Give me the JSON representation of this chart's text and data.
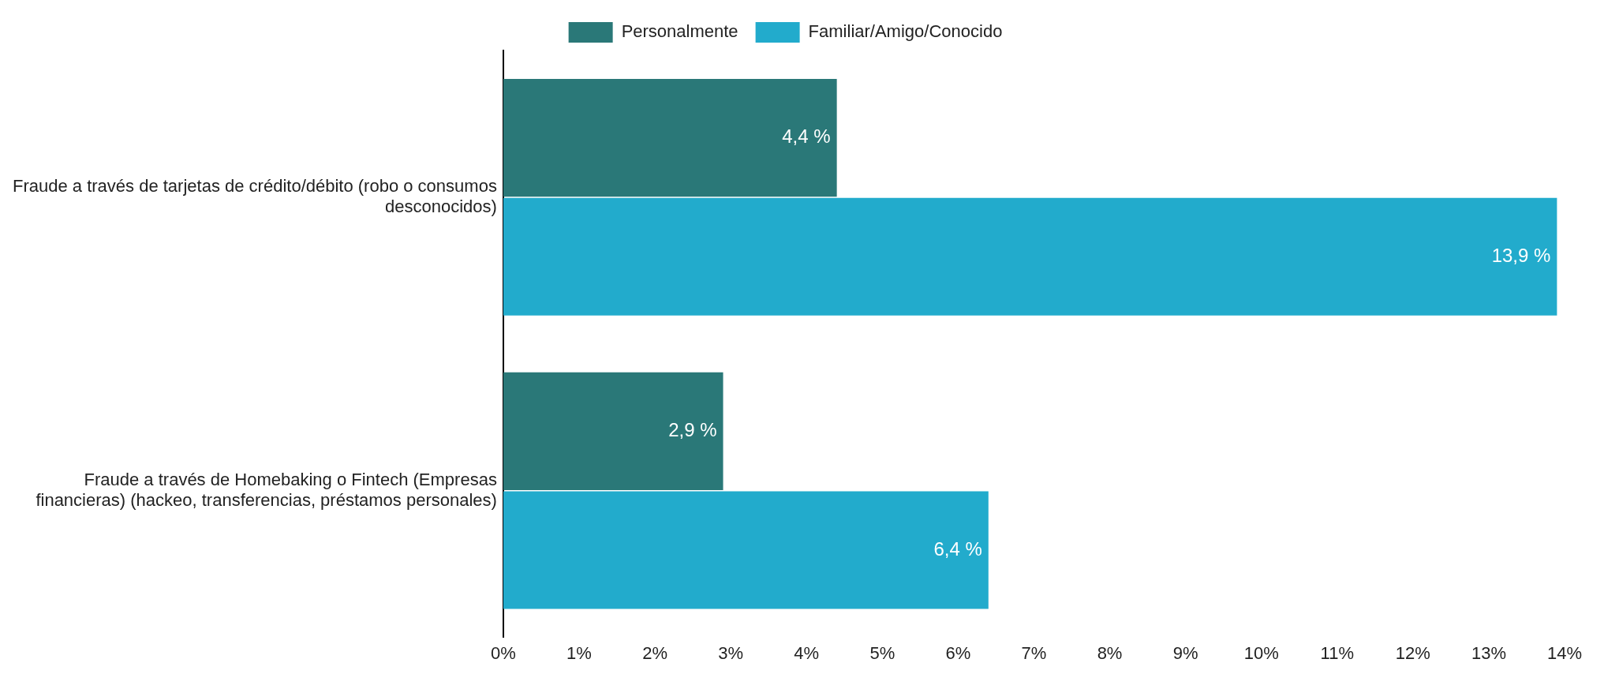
{
  "chart_data": {
    "type": "bar",
    "orientation": "horizontal",
    "categories": [
      "Fraude a través de tarjetas de crédito/débito (robo o consumos desconocidos)",
      "Fraude a través de Homebaking o Fintech (Empresas financieras) (hackeo, transferencias, préstamos personales)"
    ],
    "series": [
      {
        "name": "Personalmente",
        "color": "#2a7878",
        "values": [
          4.4,
          2.9
        ],
        "value_labels": [
          "4,4 %",
          "2,9 %"
        ]
      },
      {
        "name": "Familiar/Amigo/Conocido",
        "color": "#22abcc",
        "values": [
          13.9,
          6.4
        ],
        "value_labels": [
          "13,9 %",
          "6,4 %"
        ]
      }
    ],
    "xlim": [
      0,
      14
    ],
    "xticks": [
      {
        "value": 0,
        "label": "0%"
      },
      {
        "value": 1,
        "label": "1%"
      },
      {
        "value": 2,
        "label": "2%"
      },
      {
        "value": 3,
        "label": "3%"
      },
      {
        "value": 4,
        "label": "4%"
      },
      {
        "value": 5,
        "label": "5%"
      },
      {
        "value": 6,
        "label": "6%"
      },
      {
        "value": 7,
        "label": "7%"
      },
      {
        "value": 8,
        "label": "8%"
      },
      {
        "value": 9,
        "label": "9%"
      },
      {
        "value": 10,
        "label": "10%"
      },
      {
        "value": 11,
        "label": "11%"
      },
      {
        "value": 12,
        "label": "12%"
      },
      {
        "value": 13,
        "label": "13%"
      },
      {
        "value": 14,
        "label": "14%"
      }
    ],
    "grid": false,
    "legend": "top"
  }
}
